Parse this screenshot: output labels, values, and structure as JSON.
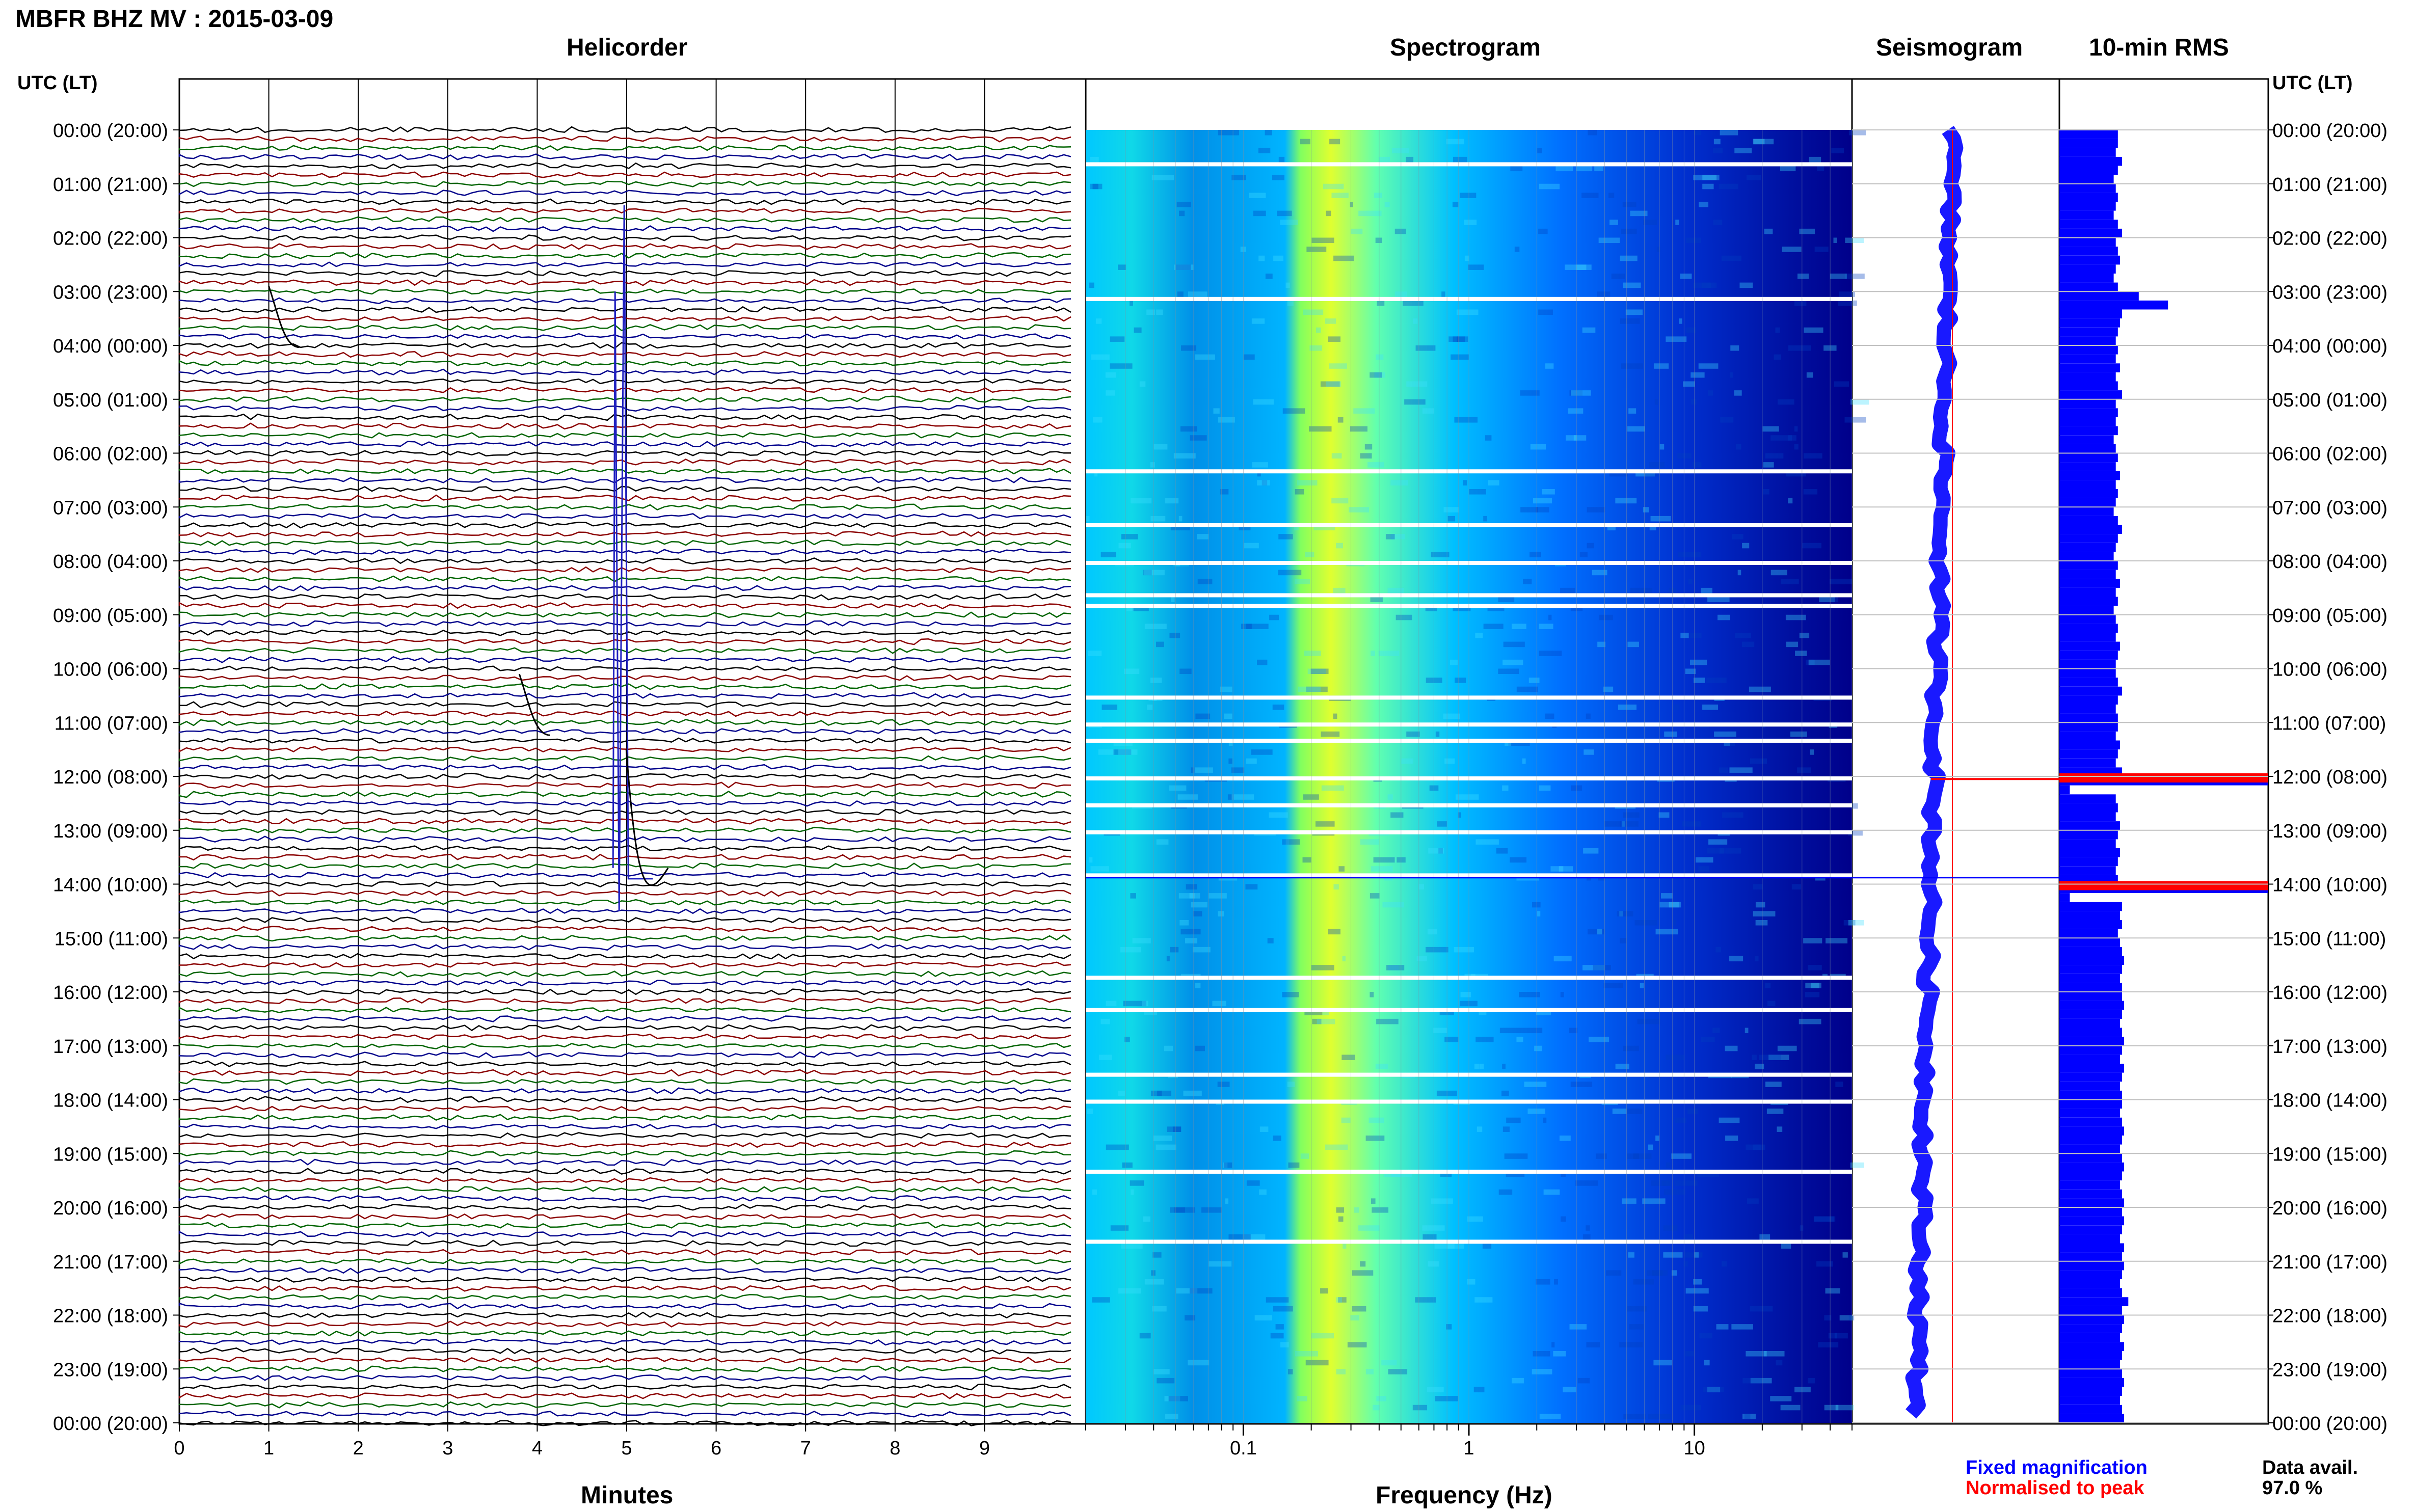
{
  "header": {
    "station_title": "MBFR BHZ MV : 2015-03-09",
    "time_axis_label": "UTC (LT)"
  },
  "panels": {
    "helicorder_title": "Helicorder",
    "spectrogram_title": "Spectrogram",
    "seismogram_title": "Seismogram",
    "rms_title": "10-min RMS",
    "helicorder_xlabel": "Minutes",
    "spectrogram_xlabel": "Frequency (Hz)"
  },
  "legend": {
    "fixed": "Fixed magnification",
    "fixed_color": "#0000ff",
    "normalised": "Normalised to peak",
    "normalised_color": "#ff0000"
  },
  "availability": {
    "label": "Data avail.",
    "value": "97.0 %"
  },
  "colors": {
    "trace_cycle": [
      "#000000",
      "#8b0000",
      "#006400",
      "#00008b"
    ],
    "spectrogram_low": "#00007f",
    "spectrogram_mid": "#00c8ff",
    "spectrogram_high": "#ffff00",
    "rms_bar": "#0000ff",
    "rms_peak": "#ff0000"
  },
  "chart_data": [
    {
      "type": "line",
      "panel": "helicorder",
      "xlabel": "Minutes",
      "xlim": [
        0,
        10
      ],
      "x_ticks": [
        0,
        1,
        2,
        3,
        4,
        5,
        6,
        7,
        8,
        9
      ],
      "rows": 144,
      "row_minutes": 10,
      "y_tick_labels": [
        "00:00 (20:00)",
        "01:00 (21:00)",
        "02:00 (22:00)",
        "03:00 (23:00)",
        "04:00 (00:00)",
        "05:00 (01:00)",
        "06:00 (02:00)",
        "07:00 (03:00)",
        "08:00 (04:00)",
        "09:00 (05:00)",
        "10:00 (06:00)",
        "11:00 (07:00)",
        "12:00 (08:00)",
        "13:00 (09:00)",
        "14:00 (10:00)",
        "15:00 (11:00)",
        "16:00 (12:00)",
        "17:00 (13:00)",
        "18:00 (14:00)",
        "19:00 (15:00)",
        "20:00 (16:00)",
        "21:00 (17:00)",
        "22:00 (18:00)",
        "23:00 (19:00)",
        "00:00 (20:00)"
      ],
      "events": [
        {
          "hour": 13.85,
          "minute": 4.95,
          "note": "large event, trace spans many rows"
        },
        {
          "hour": 10.1,
          "minute": 3.8
        },
        {
          "hour": 2.9,
          "minute": 1.0
        }
      ]
    },
    {
      "type": "heatmap",
      "panel": "spectrogram",
      "xlabel": "Frequency (Hz)",
      "x_scale": "log",
      "xlim": [
        0.02,
        50
      ],
      "x_tick_labels": [
        "0.1",
        "1",
        "10"
      ],
      "x_tick_values": [
        0.1,
        1,
        10
      ],
      "dominant_band_hz": [
        0.2,
        0.3
      ],
      "gap_hours": [
        0.6,
        3.1,
        6.3,
        7.3,
        8.0,
        8.6,
        8.8,
        10.5,
        11.0,
        11.3,
        12.0,
        12.5,
        13.0,
        13.8,
        15.7,
        16.3,
        17.5,
        18.0,
        19.3,
        20.6
      ]
    },
    {
      "type": "line",
      "panel": "seismogram",
      "series": [
        {
          "name": "Fixed magnification",
          "color": "#0000ff"
        },
        {
          "name": "Normalised to peak",
          "color": "#ff0000"
        }
      ],
      "peak_hour": 12.05
    },
    {
      "type": "bar",
      "panel": "10-min RMS",
      "orientation": "horizontal",
      "rows": 144,
      "relative_values": [
        0.28,
        0.28,
        0.27,
        0.3,
        0.28,
        0.26,
        0.27,
        0.28,
        0.27,
        0.26,
        0.28,
        0.3,
        0.27,
        0.28,
        0.29,
        0.27,
        0.26,
        0.28,
        0.38,
        0.52,
        0.3,
        0.29,
        0.28,
        0.27,
        0.28,
        0.27,
        0.29,
        0.27,
        0.28,
        0.3,
        0.27,
        0.28,
        0.27,
        0.28,
        0.26,
        0.27,
        0.28,
        0.27,
        0.29,
        0.27,
        0.28,
        0.27,
        0.26,
        0.28,
        0.3,
        0.28,
        0.27,
        0.26,
        0.28,
        0.27,
        0.29,
        0.27,
        0.28,
        0.26,
        0.27,
        0.28,
        0.27,
        0.29,
        0.28,
        0.27,
        0.27,
        0.28,
        0.3,
        0.28,
        0.27,
        0.28,
        0.28,
        0.27,
        0.29,
        0.28,
        0.27,
        0.3,
        1.0,
        0.05,
        0.27,
        0.28,
        0.27,
        0.29,
        0.28,
        0.27,
        0.29,
        0.28,
        0.27,
        0.28,
        1.0,
        0.05,
        0.3,
        0.29,
        0.3,
        0.28,
        0.29,
        0.3,
        0.31,
        0.3,
        0.29,
        0.3,
        0.3,
        0.31,
        0.3,
        0.29,
        0.3,
        0.31,
        0.3,
        0.29,
        0.31,
        0.3,
        0.29,
        0.3,
        0.3,
        0.29,
        0.3,
        0.31,
        0.3,
        0.29,
        0.3,
        0.31,
        0.3,
        0.29,
        0.3,
        0.31,
        0.3,
        0.31,
        0.3,
        0.29,
        0.31,
        0.3,
        0.31,
        0.3,
        0.29,
        0.3,
        0.33,
        0.3,
        0.31,
        0.3,
        0.29,
        0.31,
        0.3,
        0.29,
        0.3,
        0.31,
        0.3,
        0.29,
        0.3,
        0.31
      ],
      "peak_hours": [
        12.0,
        14.0
      ]
    }
  ]
}
